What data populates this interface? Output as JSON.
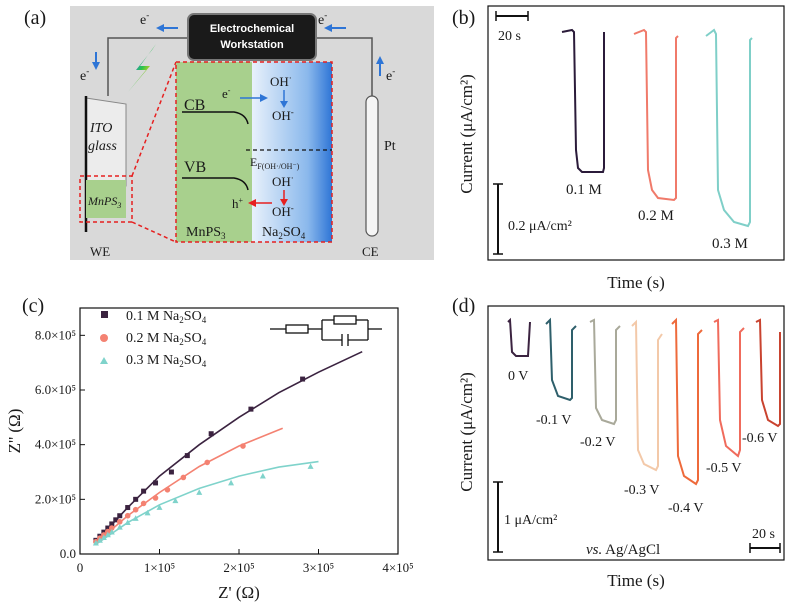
{
  "panels": {
    "a": {
      "label": "(a)",
      "workstation": [
        "Electrochemical",
        "Workstation"
      ],
      "electron": "e",
      "electron_sup": "-",
      "ito": [
        "ITO",
        "glass"
      ],
      "mnps3_small": "MnPS",
      "mnps3_sub": "3",
      "cb": "CB",
      "vb": "VB",
      "hole": "h",
      "hole_sup": "+",
      "oh": "OH",
      "oh_sup": "·",
      "oh_minus_sup": "-",
      "ef_main": "E",
      "ef_sub": "F(OH·/OH⁻)",
      "mnps3_big": "MnPS",
      "na2so4": "Na",
      "na2so4_mid": "2",
      "na2so4_end": "SO",
      "na2so4_sub": "4",
      "we": "WE",
      "ce": "CE",
      "pt": "Pt",
      "colors": {
        "gray_bg": "#d9d9d9",
        "green": "#a8d08d",
        "blue_dark": "#2e75d6",
        "blue_light": "#dbe9f9",
        "red": "#e62020"
      }
    },
    "b": {
      "label": "(b)",
      "scale_time": "20 s",
      "scale_current": "0.2 μA/cm²",
      "ylabel": "Current (μA/cm²)",
      "xlabel": "Time (s)",
      "chart_data": {
        "type": "line",
        "series": [
          {
            "name": "0.1 M",
            "color": "#2b1b3a"
          },
          {
            "name": "0.2 M",
            "color": "#f07a6a"
          },
          {
            "name": "0.3 M",
            "color": "#7fcfc8"
          }
        ]
      }
    },
    "c": {
      "label": "(c)",
      "xlabel": "Z' (Ω)",
      "ylabel": "Z'' (Ω)",
      "legend": [
        {
          "name": "0.1 M Na",
          "sub": "2",
          "end": "SO",
          "sub2": "4",
          "color": "#3b2340",
          "marker": "square"
        },
        {
          "name": "0.2 M Na",
          "sub": "2",
          "end": "SO",
          "sub2": "4",
          "color": "#f48272",
          "marker": "circle"
        },
        {
          "name": "0.3 M Na",
          "sub": "2",
          "end": "SO",
          "sub2": "4",
          "color": "#7fd3cb",
          "marker": "triangle"
        }
      ],
      "chart_data": {
        "type": "scatter",
        "xlabel": "Z' (Ω)",
        "ylabel": "Z'' (Ω)",
        "xlim": [
          0,
          400000
        ],
        "ylim": [
          0,
          900000
        ],
        "x_ticks": [
          0,
          100000,
          200000,
          300000,
          400000
        ],
        "x_tick_labels": [
          "0",
          "1×10⁵",
          "2×10⁵",
          "3×10⁵",
          "4×10⁵"
        ],
        "y_ticks": [
          0,
          200000,
          400000,
          600000,
          800000
        ],
        "y_tick_labels": [
          "0.0",
          "2.0×10⁵",
          "4.0×10⁵",
          "6.0×10⁵",
          "8.0×10⁵"
        ],
        "series": [
          {
            "name": "0.1 M Na2SO4",
            "color": "#3b2340",
            "x": [
              20000,
              25000,
              30000,
              35000,
              40000,
              45000,
              50000,
              60000,
              70000,
              80000,
              95000,
              115000,
              135000,
              165000,
              215000,
              280000
            ],
            "y": [
              50000,
              65000,
              80000,
              95000,
              110000,
              125000,
              140000,
              170000,
              200000,
              230000,
              260000,
              300000,
              360000,
              440000,
              530000,
              640000
            ],
            "fit_x": [
              20000,
              60000,
              100000,
              150000,
              200000,
              250000,
              300000,
              355000
            ],
            "fit_y": [
              45000,
              170000,
              285000,
              400000,
              500000,
              590000,
              665000,
              740000
            ]
          },
          {
            "name": "0.2 M Na2SO4",
            "color": "#f48272",
            "x": [
              20000,
              25000,
              30000,
              35000,
              40000,
              50000,
              60000,
              70000,
              80000,
              95000,
              110000,
              130000,
              160000,
              205000
            ],
            "y": [
              45000,
              58000,
              70000,
              82000,
              95000,
              118000,
              140000,
              162000,
              185000,
              205000,
              235000,
              280000,
              335000,
              395000
            ],
            "fit_x": [
              20000,
              60000,
              100000,
              150000,
              200000,
              255000
            ],
            "fit_y": [
              40000,
              140000,
              225000,
              320000,
              395000,
              460000
            ]
          },
          {
            "name": "0.3 M Na2SO4",
            "color": "#7fd3cb",
            "x": [
              20000,
              25000,
              30000,
              35000,
              40000,
              50000,
              60000,
              70000,
              85000,
              100000,
              120000,
              150000,
              190000,
              230000,
              290000
            ],
            "y": [
              40000,
              50000,
              60000,
              70000,
              80000,
              98000,
              115000,
              130000,
              150000,
              170000,
              195000,
              225000,
              260000,
              285000,
              320000
            ],
            "fit_x": [
              20000,
              60000,
              100000,
              150000,
              200000,
              250000,
              300000
            ],
            "fit_y": [
              35000,
              115000,
              180000,
              240000,
              285000,
              318000,
              338000
            ]
          }
        ]
      }
    },
    "d": {
      "label": "(d)",
      "ylabel": "Current (μA/cm²)",
      "xlabel": "Time (s)",
      "scale_current": "1 μA/cm²",
      "scale_time": "20 s",
      "ref_vs": "vs.",
      "ref_text": " Ag/AgCl",
      "chart_data": {
        "type": "line",
        "series": [
          {
            "name": "0 V",
            "color": "#3b2340"
          },
          {
            "name": "-0.1 V",
            "color": "#2e5f6b"
          },
          {
            "name": "-0.2 V",
            "color": "#a9a99a"
          },
          {
            "name": "-0.3 V",
            "color": "#f3c9a9"
          },
          {
            "name": "-0.4 V",
            "color": "#ee6a3b"
          },
          {
            "name": "-0.5 V",
            "color": "#f06b5c"
          },
          {
            "name": "-0.6 V",
            "color": "#c9432f"
          }
        ]
      }
    }
  }
}
